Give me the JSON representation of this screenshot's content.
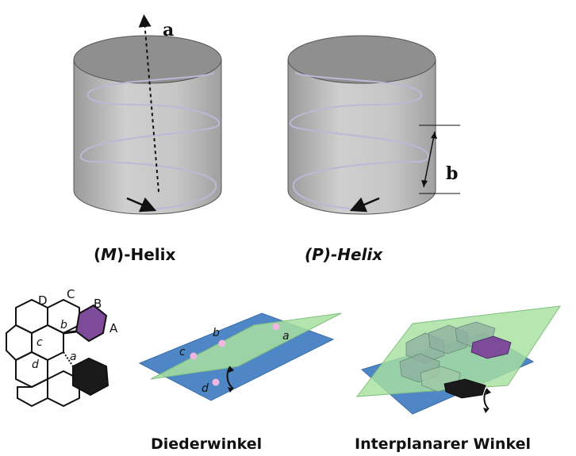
{
  "helix_figure": {
    "axis_label": "a",
    "pitch_label": "b",
    "left_caption_prefix": "(",
    "left_caption_letter": "M",
    "left_caption_suffix": ")-Helix",
    "right_caption_prefix": "(",
    "right_caption_letter": "P",
    "right_caption_suffix": ")-Helix"
  },
  "molecule": {
    "ring_labels": [
      "D",
      "C",
      "B",
      "A"
    ],
    "bond_labels": [
      "b",
      "c",
      "d",
      "a"
    ]
  },
  "planes": {
    "dihedral_points": [
      "a",
      "b",
      "c",
      "d"
    ],
    "dihedral_caption": "Diederwinkel",
    "interplanar_caption": "Interplanarer Winkel"
  },
  "colors": {
    "cylinder_side": "#c4c4c4",
    "cylinder_top": "#8e8e8e",
    "helix_line": "#b9b9d8",
    "blue_plane": "#4f86c6",
    "green_plane": "#a8e0a0",
    "purple_ring": "#7e4a9a",
    "black_ring": "#1a1a1a",
    "pink_point": "#f0b6e0"
  }
}
